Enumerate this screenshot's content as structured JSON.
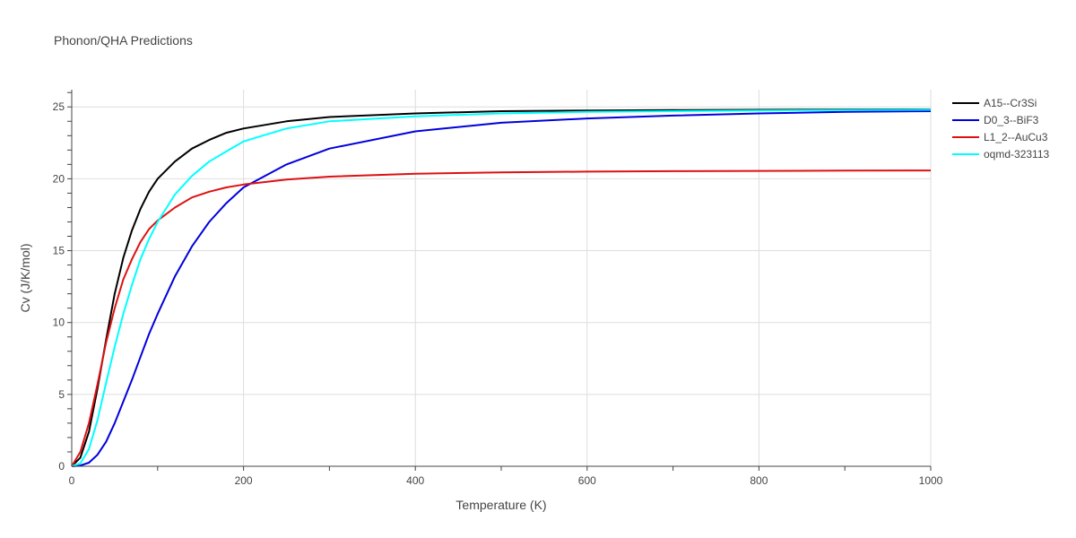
{
  "title": "Phonon/QHA Predictions",
  "chart_data": {
    "type": "line",
    "title": "Phonon/QHA Predictions",
    "xlabel": "Temperature (K)",
    "ylabel": "Cv (J/K/mol)",
    "xlim": [
      0,
      1000
    ],
    "ylim": [
      0,
      26.2
    ],
    "x_ticks": [
      0,
      200,
      400,
      600,
      800,
      1000
    ],
    "y_ticks": [
      0,
      5,
      10,
      15,
      20,
      25
    ],
    "grid": true,
    "legend_position": "top-right",
    "x": [
      0,
      10,
      20,
      30,
      40,
      50,
      60,
      70,
      80,
      90,
      100,
      120,
      140,
      160,
      180,
      200,
      250,
      300,
      400,
      500,
      600,
      700,
      800,
      900,
      1000
    ],
    "series": [
      {
        "name": "A15--Cr3Si",
        "color": "#000000",
        "values": [
          0,
          0.6,
          2.4,
          5.4,
          8.8,
          12.0,
          14.5,
          16.4,
          17.9,
          19.1,
          20.0,
          21.2,
          22.1,
          22.7,
          23.2,
          23.5,
          24.0,
          24.3,
          24.55,
          24.7,
          24.75,
          24.78,
          24.8,
          24.82,
          24.83
        ]
      },
      {
        "name": "D0_3--BiF3",
        "color": "#0000dd",
        "values": [
          0,
          0.05,
          0.25,
          0.8,
          1.7,
          3.0,
          4.5,
          6.0,
          7.6,
          9.2,
          10.6,
          13.2,
          15.3,
          17.0,
          18.3,
          19.4,
          21.0,
          22.1,
          23.3,
          23.9,
          24.2,
          24.4,
          24.55,
          24.65,
          24.7
        ]
      },
      {
        "name": "L1_2--AuCu3",
        "color": "#dd1111",
        "values": [
          0,
          1.0,
          3.0,
          5.7,
          8.6,
          11.0,
          13.0,
          14.4,
          15.6,
          16.5,
          17.1,
          18.0,
          18.7,
          19.1,
          19.4,
          19.6,
          19.95,
          20.15,
          20.35,
          20.45,
          20.5,
          20.53,
          20.55,
          20.57,
          20.58
        ]
      },
      {
        "name": "oqmd-323113",
        "color": "#00ffff",
        "values": [
          0,
          0.2,
          1.2,
          3.2,
          5.8,
          8.3,
          10.6,
          12.6,
          14.4,
          15.8,
          17.0,
          18.9,
          20.2,
          21.2,
          21.9,
          22.6,
          23.5,
          24.0,
          24.35,
          24.55,
          24.65,
          24.7,
          24.75,
          24.78,
          24.8
        ]
      }
    ]
  }
}
